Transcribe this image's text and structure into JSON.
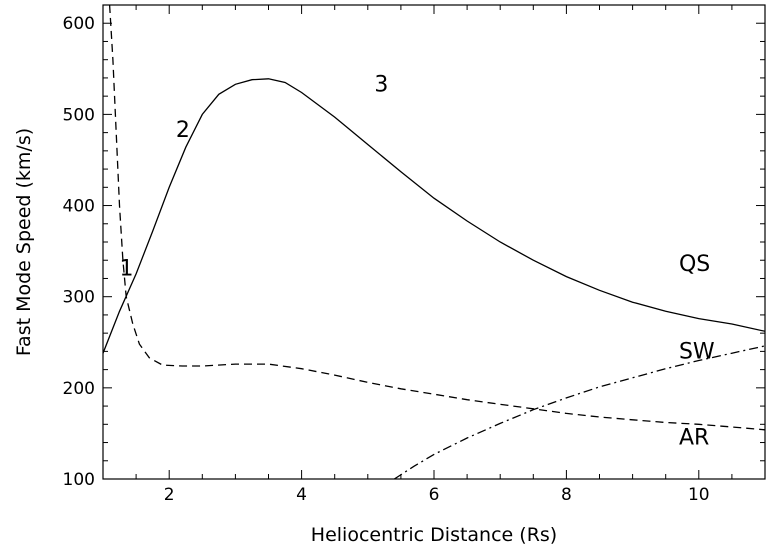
{
  "chart_data": {
    "type": "line",
    "title": "",
    "xlabel": "Heliocentric Distance (Rs)",
    "ylabel": "Fast Mode Speed (km/s)",
    "xlim": [
      1,
      11
    ],
    "ylim": [
      100,
      620
    ],
    "x_ticks": [
      2,
      4,
      6,
      8,
      10
    ],
    "y_ticks": [
      100,
      200,
      300,
      400,
      500,
      600
    ],
    "grid": false,
    "legend": "none",
    "series": [
      {
        "name": "QS",
        "style": "solid",
        "points": [
          [
            1.0,
            238
          ],
          [
            1.25,
            284
          ],
          [
            1.5,
            325
          ],
          [
            1.75,
            372
          ],
          [
            2.0,
            420
          ],
          [
            2.25,
            464
          ],
          [
            2.5,
            500
          ],
          [
            2.75,
            522
          ],
          [
            3.0,
            533
          ],
          [
            3.25,
            538
          ],
          [
            3.5,
            539
          ],
          [
            3.75,
            535
          ],
          [
            4.0,
            524
          ],
          [
            4.5,
            497
          ],
          [
            5.0,
            467
          ],
          [
            5.5,
            437
          ],
          [
            6.0,
            408
          ],
          [
            6.5,
            383
          ],
          [
            7.0,
            360
          ],
          [
            7.5,
            340
          ],
          [
            8.0,
            322
          ],
          [
            8.5,
            307
          ],
          [
            9.0,
            294
          ],
          [
            9.5,
            284
          ],
          [
            10.0,
            276
          ],
          [
            10.5,
            270
          ],
          [
            11.0,
            262
          ]
        ]
      },
      {
        "name": "AR",
        "style": "dashed",
        "points": [
          [
            1.1,
            620
          ],
          [
            1.15,
            560
          ],
          [
            1.2,
            480
          ],
          [
            1.25,
            400
          ],
          [
            1.3,
            340
          ],
          [
            1.35,
            300
          ],
          [
            1.45,
            270
          ],
          [
            1.55,
            248
          ],
          [
            1.7,
            233
          ],
          [
            1.9,
            225
          ],
          [
            2.2,
            224
          ],
          [
            2.5,
            224
          ],
          [
            3.0,
            226
          ],
          [
            3.5,
            226
          ],
          [
            4.0,
            221
          ],
          [
            4.5,
            214
          ],
          [
            5.0,
            206
          ],
          [
            5.5,
            199
          ],
          [
            6.0,
            193
          ],
          [
            6.5,
            187
          ],
          [
            7.0,
            182
          ],
          [
            7.5,
            177
          ],
          [
            8.0,
            172
          ],
          [
            8.5,
            168
          ],
          [
            9.0,
            165
          ],
          [
            9.5,
            162
          ],
          [
            10.0,
            160
          ],
          [
            10.5,
            157
          ],
          [
            11.0,
            154
          ]
        ]
      },
      {
        "name": "SW",
        "style": "dashdot",
        "points": [
          [
            5.4,
            100
          ],
          [
            5.7,
            114
          ],
          [
            6.0,
            127
          ],
          [
            6.5,
            145
          ],
          [
            7.0,
            161
          ],
          [
            7.5,
            176
          ],
          [
            8.0,
            189
          ],
          [
            8.5,
            201
          ],
          [
            9.0,
            211
          ],
          [
            9.5,
            221
          ],
          [
            10.0,
            230
          ],
          [
            10.5,
            238
          ],
          [
            11.0,
            246
          ]
        ]
      }
    ],
    "annotations": [
      {
        "text": "1",
        "x": 1.25,
        "y": 323
      },
      {
        "text": "2",
        "x": 2.1,
        "y": 475
      },
      {
        "text": "3",
        "x": 5.1,
        "y": 525
      },
      {
        "text": "QS",
        "x": 9.7,
        "y": 328
      },
      {
        "text": "SW",
        "x": 9.7,
        "y": 232
      },
      {
        "text": "AR",
        "x": 9.7,
        "y": 138
      }
    ]
  }
}
